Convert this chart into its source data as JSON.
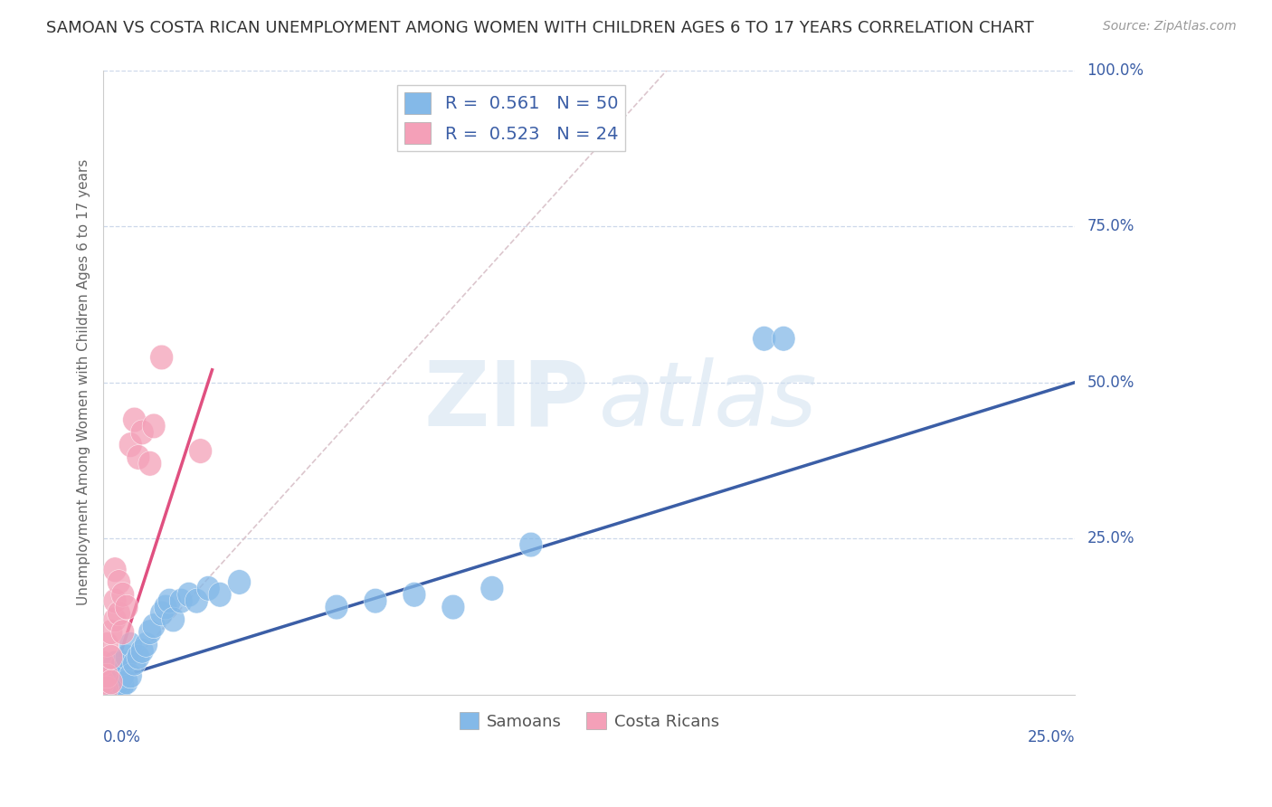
{
  "title": "SAMOAN VS COSTA RICAN UNEMPLOYMENT AMONG WOMEN WITH CHILDREN AGES 6 TO 17 YEARS CORRELATION CHART",
  "source": "Source: ZipAtlas.com",
  "xlabel_bottom_left": "0.0%",
  "xlabel_bottom_right": "25.0%",
  "ylabel_right_top": "100.0%",
  "ylabel_right_75": "75.0%",
  "ylabel_right_50": "50.0%",
  "ylabel_right_25": "25.0%",
  "ylabel_left": "Unemployment Among Women with Children Ages 6 to 17 years",
  "xlim": [
    0.0,
    0.25
  ],
  "ylim": [
    0.0,
    1.0
  ],
  "samoans_color": "#84B9E8",
  "costa_ricans_color": "#F4A0B8",
  "samoans_line_color": "#3B5EA6",
  "costa_ricans_line_color": "#E05080",
  "ref_line_color": "#D8C0C8",
  "R_samoans": 0.561,
  "N_samoans": 50,
  "R_costa_ricans": 0.523,
  "N_costa_ricans": 24,
  "watermark_zip": "ZIP",
  "watermark_atlas": "atlas",
  "background_color": "#FFFFFF",
  "grid_color": "#C8D4E8",
  "title_fontsize": 13,
  "label_color_blue": "#3B5EA6",
  "label_color_pink": "#E05080",
  "axis_label_color": "#888888",
  "samoans_x": [
    0.0,
    0.0,
    0.001,
    0.001,
    0.001,
    0.001,
    0.001,
    0.002,
    0.002,
    0.002,
    0.002,
    0.002,
    0.003,
    0.003,
    0.003,
    0.003,
    0.004,
    0.004,
    0.004,
    0.005,
    0.005,
    0.005,
    0.006,
    0.006,
    0.007,
    0.007,
    0.008,
    0.009,
    0.01,
    0.011,
    0.012,
    0.013,
    0.015,
    0.016,
    0.017,
    0.018,
    0.02,
    0.022,
    0.024,
    0.027,
    0.03,
    0.035,
    0.06,
    0.07,
    0.08,
    0.09,
    0.1,
    0.11,
    0.17,
    0.175
  ],
  "samoans_y": [
    0.01,
    0.02,
    0.005,
    0.01,
    0.015,
    0.02,
    0.025,
    0.005,
    0.01,
    0.02,
    0.03,
    0.04,
    0.01,
    0.02,
    0.03,
    0.05,
    0.01,
    0.02,
    0.04,
    0.015,
    0.03,
    0.05,
    0.02,
    0.06,
    0.03,
    0.08,
    0.05,
    0.06,
    0.07,
    0.08,
    0.1,
    0.11,
    0.13,
    0.14,
    0.15,
    0.12,
    0.15,
    0.16,
    0.15,
    0.17,
    0.16,
    0.18,
    0.14,
    0.15,
    0.16,
    0.14,
    0.17,
    0.24,
    0.57,
    0.57
  ],
  "costa_ricans_x": [
    0.0,
    0.0,
    0.001,
    0.001,
    0.001,
    0.002,
    0.002,
    0.002,
    0.003,
    0.003,
    0.003,
    0.004,
    0.004,
    0.005,
    0.005,
    0.006,
    0.007,
    0.008,
    0.009,
    0.01,
    0.012,
    0.013,
    0.015,
    0.025
  ],
  "costa_ricans_y": [
    0.02,
    0.05,
    0.01,
    0.03,
    0.08,
    0.02,
    0.06,
    0.1,
    0.12,
    0.15,
    0.2,
    0.13,
    0.18,
    0.1,
    0.16,
    0.14,
    0.4,
    0.44,
    0.38,
    0.42,
    0.37,
    0.43,
    0.54,
    0.39
  ],
  "ref_line_x1": 0.0,
  "ref_line_y1": 0.0,
  "ref_line_x2": 0.145,
  "ref_line_y2": 1.0,
  "samoans_trendline_x1": 0.0,
  "samoans_trendline_y1": 0.02,
  "samoans_trendline_x2": 0.25,
  "samoans_trendline_y2": 0.5,
  "costa_trendline_x1": 0.0,
  "costa_trendline_y1": -0.02,
  "costa_trendline_x2": 0.028,
  "costa_trendline_y2": 0.52
}
